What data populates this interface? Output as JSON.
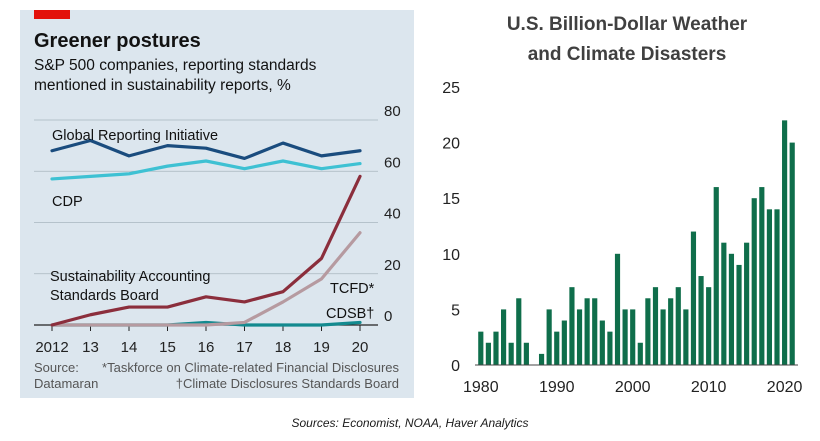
{
  "chart_data": [
    {
      "type": "line",
      "title": "Greener postures",
      "subtitle_lines": [
        "S&P 500 companies, reporting standards",
        "mentioned in sustainability reports, %"
      ],
      "x": [
        "2012",
        "13",
        "14",
        "15",
        "16",
        "17",
        "18",
        "19",
        "20"
      ],
      "ylim": [
        0,
        80
      ],
      "yticks": [
        "0",
        "20",
        "40",
        "60",
        "80"
      ],
      "grid": true,
      "series": [
        {
          "name": "Global Reporting Initiative",
          "color": "#1a4c7e",
          "values": [
            68,
            72,
            66,
            70,
            69,
            65,
            71,
            66,
            68
          ]
        },
        {
          "name": "CDP",
          "color": "#3ec1d3",
          "values": [
            57,
            58,
            59,
            62,
            64,
            61,
            64,
            61,
            63
          ]
        },
        {
          "name": "Sustainability Accounting Standards Board",
          "label_lines": [
            "Sustainability Accounting",
            "Standards Board"
          ],
          "color": "#8b2e3c",
          "values": [
            0,
            4,
            7,
            7,
            11,
            9,
            13,
            26,
            58
          ]
        },
        {
          "name": "TCFD*",
          "color": "#b69aa0",
          "values": [
            0,
            0,
            0,
            0,
            0,
            1,
            9,
            18,
            36
          ]
        },
        {
          "name": "CDSB†",
          "color": "#138a8f",
          "values": [
            0,
            0,
            0,
            0,
            1,
            0,
            0,
            0,
            1
          ]
        }
      ],
      "source_lines": [
        "Source:",
        "Datamaran"
      ],
      "footnote_lines": [
        "*Taskforce on Climate-related Financial Disclosures",
        "†Climate Disclosures Standards Board"
      ]
    },
    {
      "type": "bar",
      "title_lines": [
        "U.S. Billion-Dollar Weather",
        "and Climate Disasters"
      ],
      "categories": [
        1980,
        1981,
        1982,
        1983,
        1984,
        1985,
        1986,
        1987,
        1988,
        1989,
        1990,
        1991,
        1992,
        1993,
        1994,
        1995,
        1996,
        1997,
        1998,
        1999,
        2000,
        2001,
        2002,
        2003,
        2004,
        2005,
        2006,
        2007,
        2008,
        2009,
        2010,
        2011,
        2012,
        2013,
        2014,
        2015,
        2016,
        2017,
        2018,
        2019,
        2020,
        2021
      ],
      "values": [
        3,
        2,
        3,
        5,
        2,
        6,
        2,
        0,
        1,
        5,
        3,
        4,
        7,
        5,
        6,
        6,
        4,
        3,
        10,
        5,
        5,
        2,
        6,
        7,
        5,
        6,
        7,
        5,
        12,
        8,
        7,
        16,
        11,
        10,
        9,
        11,
        15,
        16,
        14,
        14,
        22,
        20
      ],
      "xticks": [
        "1980",
        "1990",
        "2000",
        "2010",
        "2020"
      ],
      "ylim": [
        0,
        25
      ],
      "yticks": [
        "0",
        "5",
        "10",
        "15",
        "20",
        "25"
      ],
      "bar_color": "#0f6e4b"
    }
  ],
  "sources_note": "Sources: Economist, NOAA, Haver Analytics"
}
